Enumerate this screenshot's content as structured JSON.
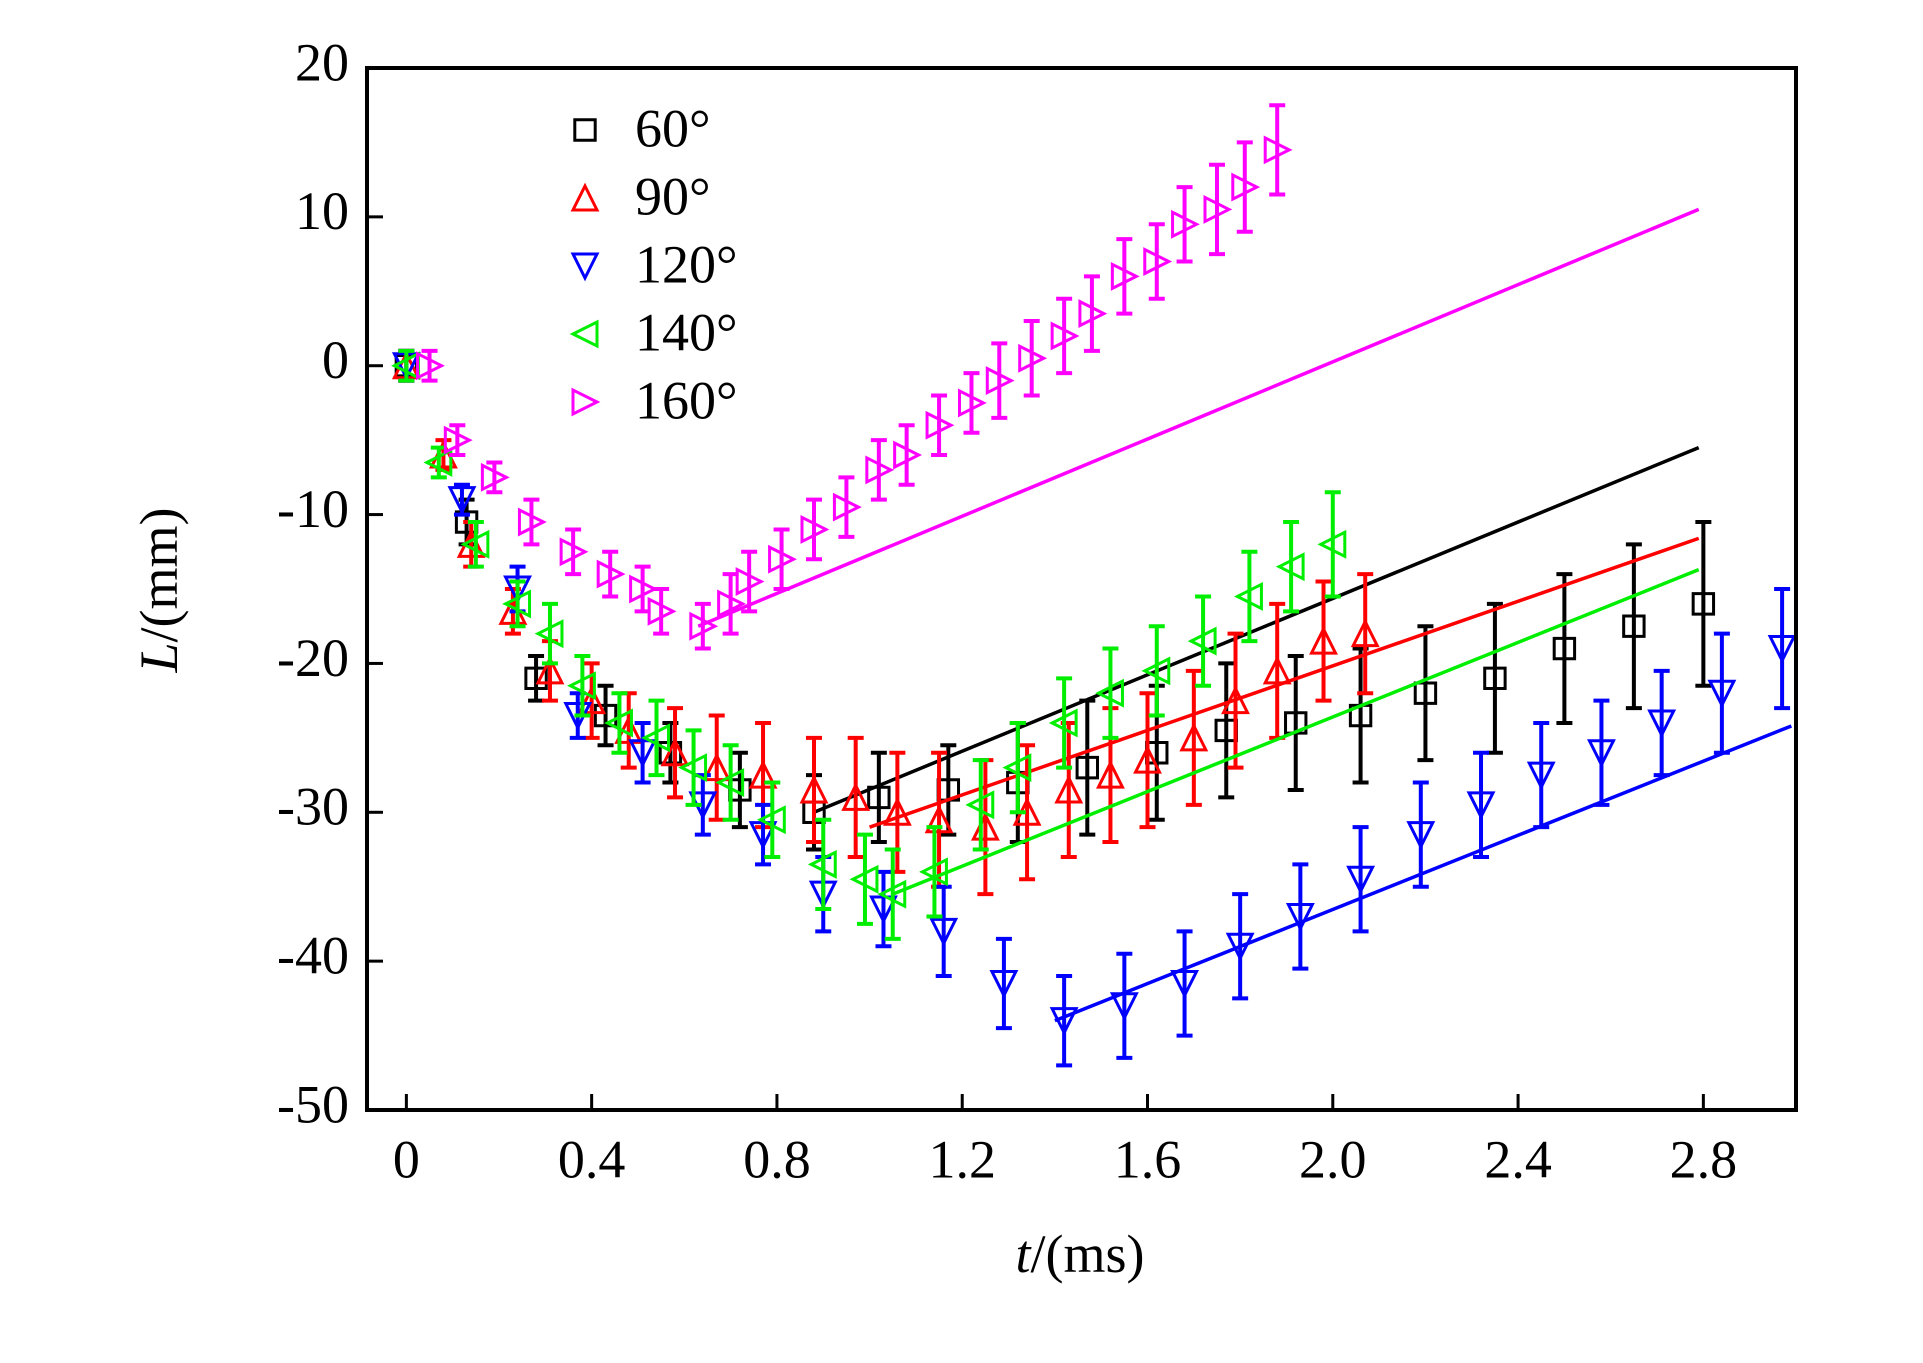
{
  "chart_data": {
    "type": "scatter",
    "x_label_symbol": "t",
    "x_label_unit": "/(ms)",
    "y_label_symbol": "L",
    "y_label_unit": "/(mm)",
    "xlim": [
      -0.085,
      3.0
    ],
    "ylim": [
      -50,
      20
    ],
    "xticks": [
      0,
      0.4,
      0.8,
      1.2,
      1.6,
      {
        "value": 2.0,
        "label": "2.0"
      },
      2.4,
      2.8
    ],
    "yticks": [
      20,
      10,
      0,
      -10,
      -20,
      -30,
      -40,
      -50
    ],
    "legend": "upper left",
    "series": [
      {
        "name": "60°",
        "color": "#000000",
        "marker": "square",
        "x": [
          0,
          0.13,
          0.28,
          0.43,
          0.57,
          0.72,
          0.88,
          1.02,
          1.17,
          1.32,
          1.47,
          1.62,
          1.77,
          1.92,
          2.06,
          2.2,
          2.35,
          2.5,
          2.65,
          2.8
        ],
        "values": [
          0,
          -10.5,
          -21,
          -23.5,
          -26,
          -28.5,
          -30,
          -29,
          -28.5,
          -28,
          -27,
          -26,
          -24.5,
          -24,
          -23.5,
          -22,
          -21,
          -19,
          -17.5,
          -16
        ],
        "errors": [
          1,
          1.5,
          1.5,
          2,
          2,
          2.5,
          2.5,
          3,
          3,
          4,
          4.5,
          4.5,
          4.5,
          4.5,
          4.5,
          4.5,
          5,
          5,
          5.5,
          5.5
        ],
        "fit_x": [
          0.88,
          2.79
        ],
        "fit_y": [
          -30,
          -5.5
        ]
      },
      {
        "name": "90°",
        "color": "#ff0000",
        "marker": "triangle-up",
        "x": [
          0,
          0.08,
          0.14,
          0.23,
          0.31,
          0.4,
          0.48,
          0.58,
          0.67,
          0.77,
          0.88,
          0.97,
          1.06,
          1.15,
          1.25,
          1.34,
          1.43,
          1.52,
          1.6,
          1.7,
          1.79,
          1.88,
          1.98,
          2.07
        ],
        "values": [
          0,
          -6,
          -12,
          -16.5,
          -20.5,
          -22.5,
          -24.5,
          -26,
          -27,
          -27.5,
          -28.5,
          -29,
          -30,
          -30.5,
          -31,
          -30,
          -28.5,
          -27.5,
          -26.5,
          -25,
          -22.5,
          -20.5,
          -18.5,
          -18
        ],
        "errors": [
          1,
          1,
          1.5,
          1.5,
          2,
          2.5,
          2.5,
          3,
          3.5,
          3.5,
          3.5,
          4,
          4,
          4.5,
          4.5,
          4.5,
          4.5,
          4.5,
          4.5,
          4.5,
          4.5,
          4.5,
          4,
          4
        ],
        "fit_x": [
          1.0,
          2.79
        ],
        "fit_y": [
          -31,
          -11.6
        ]
      },
      {
        "name": "120°",
        "color": "#0000ff",
        "marker": "triangle-down",
        "x": [
          0,
          0.12,
          0.24,
          0.37,
          0.51,
          0.64,
          0.77,
          0.9,
          1.03,
          1.16,
          1.29,
          1.42,
          1.55,
          1.68,
          1.8,
          1.93,
          2.06,
          2.19,
          2.32,
          2.45,
          2.58,
          2.71,
          2.84,
          2.97
        ],
        "values": [
          0,
          -9,
          -15,
          -23.5,
          -26,
          -29.5,
          -31.5,
          -35.5,
          -36.5,
          -38,
          -41.5,
          -44,
          -43,
          -41.5,
          -39,
          -37,
          -34.5,
          -31.5,
          -29.5,
          -27.5,
          -26,
          -24,
          -22,
          -19
        ],
        "errors": [
          1,
          1,
          1.5,
          1.5,
          2,
          2,
          2,
          2.5,
          2.5,
          3,
          3,
          3,
          3.5,
          3.5,
          3.5,
          3.5,
          3.5,
          3.5,
          3.5,
          3.5,
          3.5,
          3.5,
          4,
          4
        ],
        "fit_x": [
          1.4,
          2.99
        ],
        "fit_y": [
          -44,
          -24.2
        ]
      },
      {
        "name": "140°",
        "color": "#00ee00",
        "marker": "triangle-left",
        "x": [
          0,
          0.07,
          0.15,
          0.24,
          0.31,
          0.38,
          0.46,
          0.54,
          0.62,
          0.7,
          0.79,
          0.9,
          0.99,
          1.05,
          1.14,
          1.24,
          1.32,
          1.42,
          1.52,
          1.62,
          1.72,
          1.82,
          1.91,
          2.0
        ],
        "values": [
          0,
          -6.5,
          -12,
          -16,
          -18,
          -21.5,
          -24,
          -25,
          -27,
          -28,
          -30.5,
          -33.5,
          -34.5,
          -35.5,
          -34,
          -29.5,
          -27,
          -24,
          -22,
          -20.5,
          -18.5,
          -15.5,
          -13.5,
          -12
        ],
        "errors": [
          1,
          1,
          1.5,
          1.5,
          2,
          2,
          2,
          2.5,
          2.5,
          2.5,
          2.5,
          3,
          3,
          3,
          3,
          3,
          3,
          3,
          3,
          3,
          3,
          3,
          3,
          3.5
        ],
        "fit_x": [
          1.05,
          2.79
        ],
        "fit_y": [
          -35.5,
          -13.7
        ]
      },
      {
        "name": "160°",
        "color": "#ff00ff",
        "marker": "triangle-right",
        "x": [
          0.05,
          0.11,
          0.19,
          0.27,
          0.36,
          0.44,
          0.51,
          0.55,
          0.64,
          0.7,
          0.74,
          0.81,
          0.88,
          0.95,
          1.02,
          1.08,
          1.15,
          1.22,
          1.28,
          1.35,
          1.42,
          1.48,
          1.55,
          1.62,
          1.68,
          1.75,
          1.81,
          1.88
        ],
        "values": [
          0,
          -5,
          -7.5,
          -10.5,
          -12.5,
          -14,
          -15,
          -16.5,
          -17.5,
          -16,
          -14.5,
          -13,
          -11,
          -9.5,
          -7,
          -6,
          -4,
          -2.5,
          -1,
          0.5,
          2,
          3.5,
          6,
          7,
          9.5,
          10.5,
          12,
          14.5
        ],
        "errors": [
          1,
          1,
          1,
          1.5,
          1.5,
          1.5,
          1.5,
          1.5,
          1.5,
          2,
          2,
          2,
          2,
          2,
          2,
          2,
          2,
          2,
          2.5,
          2.5,
          2.5,
          2.5,
          2.5,
          2.5,
          2.5,
          3,
          3,
          3
        ],
        "fit_x": [
          0.63,
          2.79
        ],
        "fit_y": [
          -17.5,
          10.5
        ]
      }
    ]
  }
}
